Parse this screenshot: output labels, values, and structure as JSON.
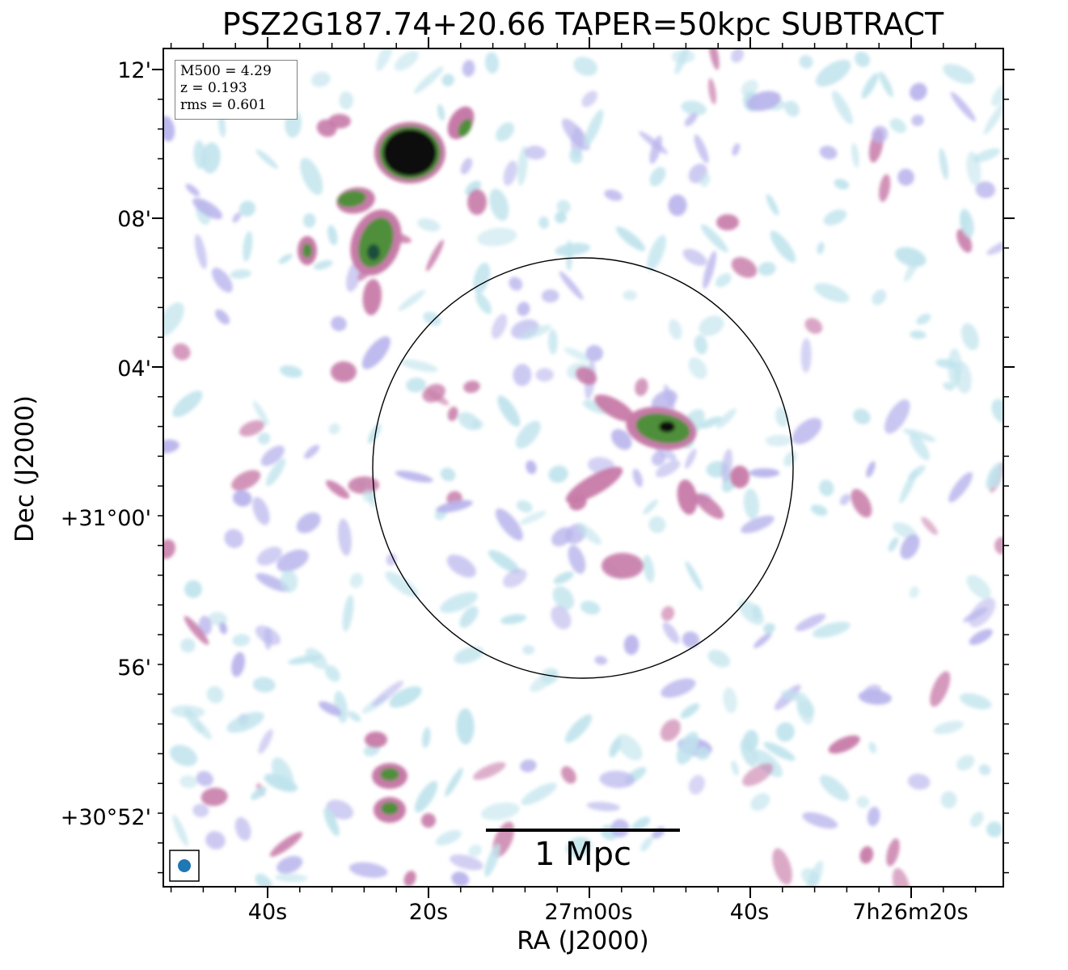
{
  "chart_data": {
    "type": "heatmap",
    "title": "PSZ2G187.74+20.66 TAPER=50kpc SUBTRACT",
    "xlabel": "RA (J2000)",
    "ylabel": "Dec (J2000)",
    "x_ticks": [
      "40s",
      "20s",
      "27m00s",
      "40s",
      "7h26m20s"
    ],
    "y_ticks": [
      "12'",
      "08'",
      "04'",
      "+31°00'",
      "56'",
      "+30°52'"
    ],
    "info": {
      "m500": "M500 = 4.29",
      "z": "z = 0.193",
      "rms": "rms = 0.601"
    },
    "scale_bar": {
      "label": "1 Mpc",
      "length_mpc": 1
    },
    "colormap": "cubehelix",
    "colors": {
      "faint": "#bfe3ec",
      "low": "#b8b4ec",
      "mid": "#c77aa8",
      "high": "#4f8f3a",
      "peak": "#0a0a0a",
      "beam": "#1f77b4"
    },
    "grid": false,
    "circle_marker": true,
    "beam_marker": true
  }
}
